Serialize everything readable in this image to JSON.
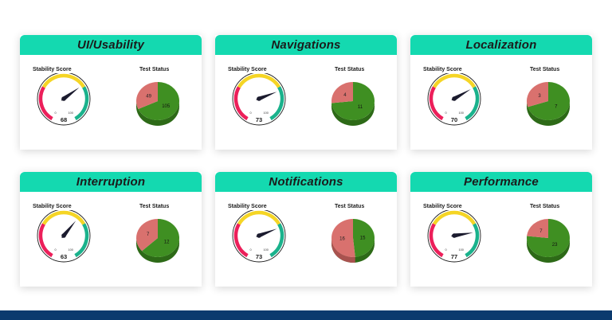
{
  "labels": {
    "stability": "Stability Score",
    "test": "Test Status"
  },
  "gauge_scale": {
    "min": "0",
    "max": "100"
  },
  "colors": {
    "header": "#14d9b0",
    "fail": "#d9716e",
    "pass": "#3f8f22",
    "pass_side": "#2d6a17",
    "fail_side": "#a9524f",
    "footer": "#0b3a6e"
  },
  "cards": [
    {
      "title": "UI/Usability",
      "score": 68,
      "failed": 49,
      "passed": 105
    },
    {
      "title": "Navigations",
      "score": 73,
      "failed": 4,
      "passed": 11
    },
    {
      "title": "Localization",
      "score": 70,
      "failed": 3,
      "passed": 7
    },
    {
      "title": "Interruption",
      "score": 63,
      "failed": 7,
      "passed": 12
    },
    {
      "title": "Notifications",
      "score": 73,
      "failed": 16,
      "passed": 15
    },
    {
      "title": "Performance",
      "score": 77,
      "failed": 7,
      "passed": 23
    }
  ]
}
